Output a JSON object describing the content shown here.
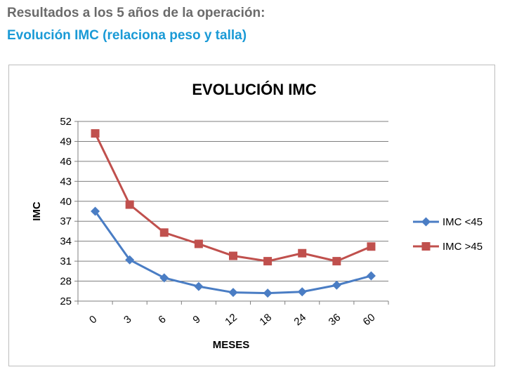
{
  "header": {
    "title": "Resultados a los 5 años de la operación:",
    "subtitle": "Evolución IMC (relaciona peso y talla)"
  },
  "colors": {
    "heading": "#6b6b6b",
    "subtitle": "#1a9ad6",
    "series1": "#4a7dc4",
    "series2": "#c0504d",
    "grid": "#7f7f7f"
  },
  "chart_data": {
    "type": "line",
    "title": "EVOLUCIÓN IMC",
    "xlabel": "MESES",
    "ylabel": "IMC",
    "categories": [
      "0",
      "3",
      "6",
      "9",
      "12",
      "18",
      "24",
      "36",
      "60"
    ],
    "yticks": [
      "25",
      "28",
      "31",
      "34",
      "37",
      "40",
      "43",
      "46",
      "49",
      "52"
    ],
    "ylim": [
      25,
      52
    ],
    "grid": true,
    "legend_position": "right",
    "series": [
      {
        "name": "IMC <45",
        "marker": "diamond",
        "values": [
          38.5,
          31.2,
          28.5,
          27.2,
          26.3,
          26.2,
          26.4,
          27.4,
          28.8
        ]
      },
      {
        "name": "IMC >45",
        "marker": "square",
        "values": [
          50.2,
          39.5,
          35.3,
          33.6,
          31.8,
          31.0,
          32.2,
          31.0,
          33.2
        ]
      }
    ]
  }
}
